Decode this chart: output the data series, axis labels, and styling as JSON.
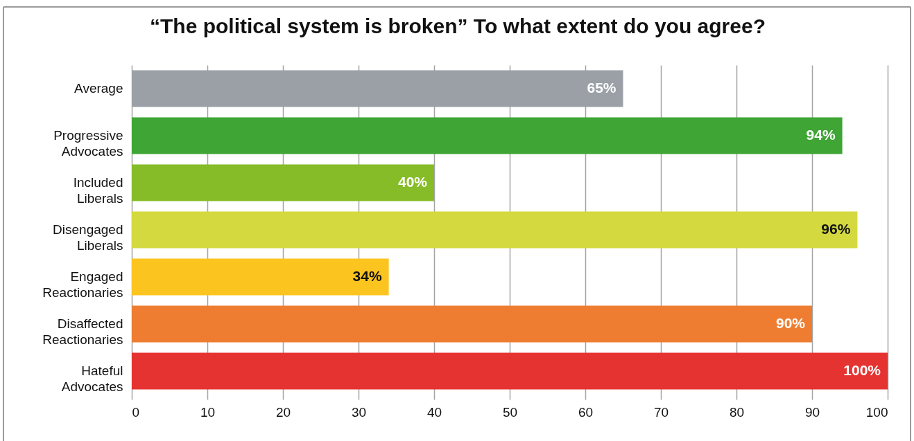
{
  "chart_data": {
    "type": "bar",
    "orientation": "horizontal",
    "title": "“The political system is broken” To what extent do you agree?",
    "categories": [
      "Average",
      "Progressive\nAdvocates",
      "Included\nLiberals",
      "Disengaged\nLiberals",
      "Engaged\nReactionaries",
      "Disaffected\nReactionaries",
      "Hateful\nAdvocates"
    ],
    "values": [
      65,
      94,
      40,
      96,
      34,
      90,
      100
    ],
    "colors": [
      "#9aa0a6",
      "#3fa535",
      "#86bc28",
      "#d3d93f",
      "#fcc41f",
      "#ee7d31",
      "#e53331"
    ],
    "value_labels": [
      "65%",
      "94%",
      "40%",
      "96%",
      "34%",
      "90%",
      "100%"
    ],
    "xlim": [
      0,
      100
    ],
    "xticks": [
      0,
      10,
      20,
      30,
      40,
      50,
      60,
      70,
      80,
      90,
      100
    ],
    "grid": "x"
  }
}
